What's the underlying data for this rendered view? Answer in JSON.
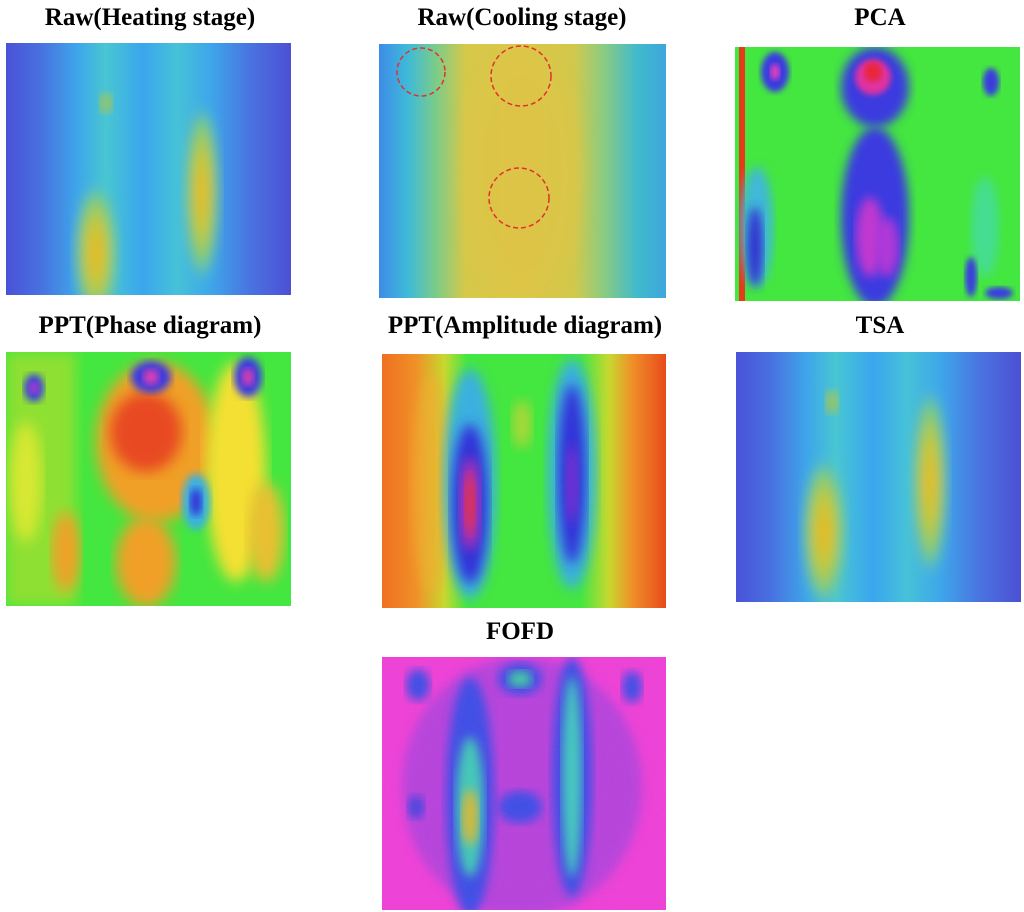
{
  "panels": {
    "raw_heating": {
      "title": "Raw(Heating stage)"
    },
    "raw_cooling": {
      "title": "Raw(Cooling stage)"
    },
    "pca": {
      "title": "PCA"
    },
    "ppt_phase": {
      "title": "PPT(Phase diagram)"
    },
    "ppt_amplitude": {
      "title": "PPT(Amplitude diagram)"
    },
    "tsa": {
      "title": "TSA"
    },
    "fofd": {
      "title": "FOFD"
    }
  }
}
